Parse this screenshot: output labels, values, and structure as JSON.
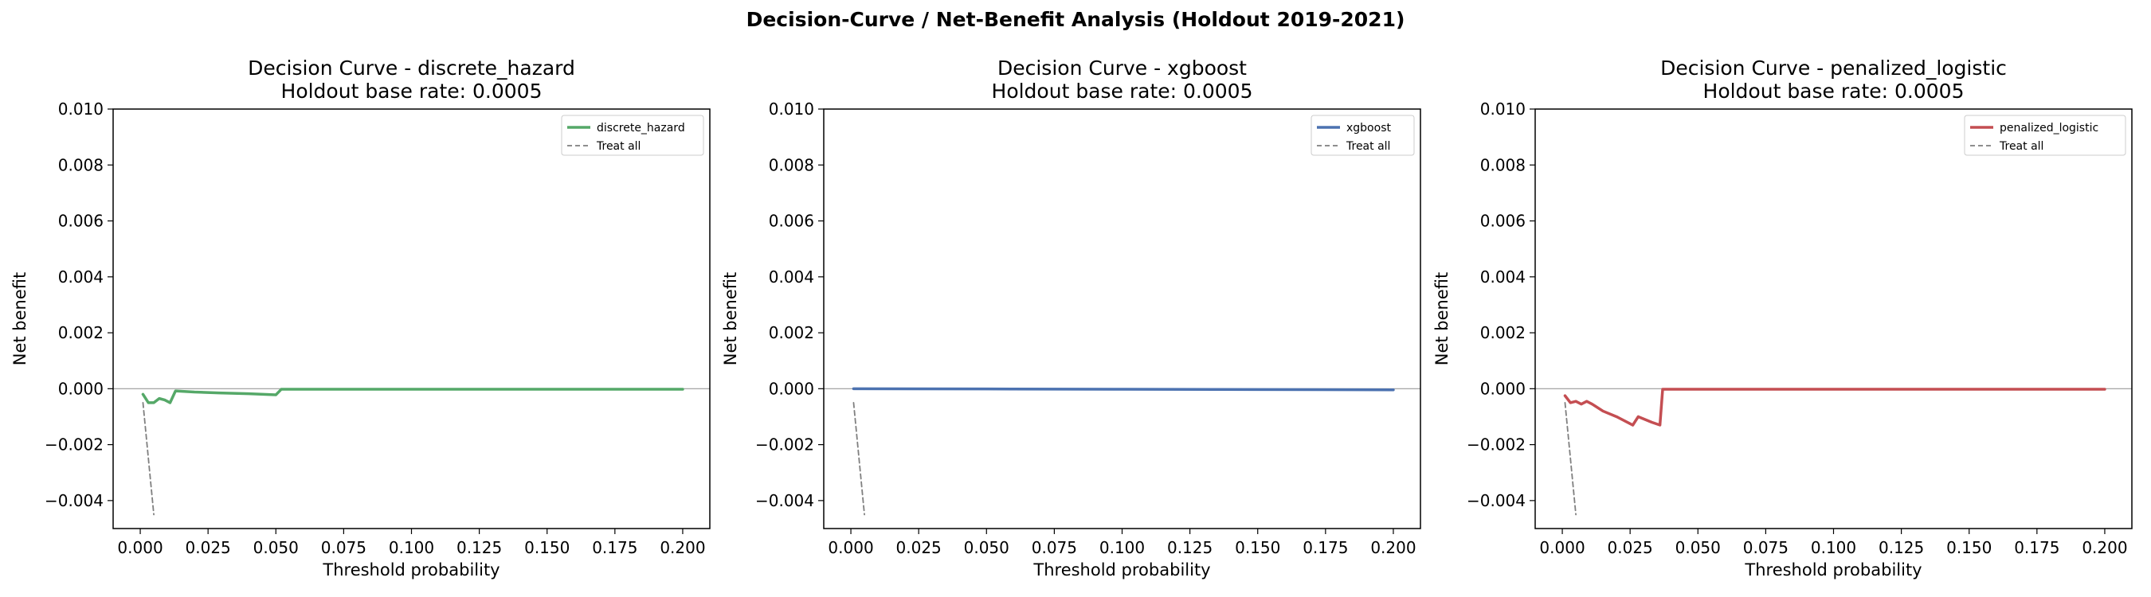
{
  "figure": {
    "suptitle": "Decision-Curve / Net-Benefit Analysis (Holdout 2019-2021)"
  },
  "colors": {
    "discrete_hazard": "#55a868",
    "xgboost": "#4c72b0",
    "penalized_logistic": "#c44e52",
    "treat_all": "#7f7f7f",
    "zero_line": "#999999"
  },
  "chart_data": [
    {
      "type": "line",
      "title": "Decision Curve - discrete_hazard",
      "subtitle": "Holdout base rate: 0.0005",
      "xlabel": "Threshold probability",
      "ylabel": "Net benefit",
      "xlim": [
        -0.01,
        0.21
      ],
      "ylim": [
        -0.005,
        0.01
      ],
      "xticks": [
        "0.000",
        "0.025",
        "0.050",
        "0.075",
        "0.100",
        "0.125",
        "0.150",
        "0.175",
        "0.200"
      ],
      "yticks": [
        "0.010",
        "0.008",
        "0.006",
        "0.004",
        "0.002",
        "0.000",
        "−0.002",
        "−0.004"
      ],
      "grid": false,
      "legend_position": "top-right",
      "series": [
        {
          "name": "discrete_hazard",
          "color": "#55a868",
          "dashed": false,
          "x": [
            0.001,
            0.003,
            0.005,
            0.007,
            0.009,
            0.011,
            0.013,
            0.02,
            0.029,
            0.04,
            0.05,
            0.052,
            0.06,
            0.1,
            0.15,
            0.2
          ],
          "y": [
            -0.0002,
            -0.0005,
            -0.0005,
            -0.00035,
            -0.0004,
            -0.0005,
            -8e-05,
            -0.00012,
            -0.00015,
            -0.00018,
            -0.00022,
            -2e-05,
            -2e-05,
            -2e-05,
            -2e-05,
            -2e-05
          ]
        },
        {
          "name": "Treat all",
          "color": "#7f7f7f",
          "dashed": true,
          "x": [
            0.001,
            0.005
          ],
          "y": [
            -0.0005,
            -0.0045
          ]
        }
      ]
    },
    {
      "type": "line",
      "title": "Decision Curve - xgboost",
      "subtitle": "Holdout base rate: 0.0005",
      "xlabel": "Threshold probability",
      "ylabel": "Net benefit",
      "xlim": [
        -0.01,
        0.21
      ],
      "ylim": [
        -0.005,
        0.01
      ],
      "xticks": [
        "0.000",
        "0.025",
        "0.050",
        "0.075",
        "0.100",
        "0.125",
        "0.150",
        "0.175",
        "0.200"
      ],
      "yticks": [
        "0.010",
        "0.008",
        "0.006",
        "0.004",
        "0.002",
        "0.000",
        "−0.002",
        "−0.004"
      ],
      "grid": false,
      "legend_position": "top-right",
      "series": [
        {
          "name": "xgboost",
          "color": "#4c72b0",
          "dashed": false,
          "x": [
            0.001,
            0.05,
            0.1,
            0.15,
            0.2
          ],
          "y": [
            0.0,
            -1e-05,
            -2e-05,
            -3e-05,
            -4e-05
          ]
        },
        {
          "name": "Treat all",
          "color": "#7f7f7f",
          "dashed": true,
          "x": [
            0.001,
            0.005
          ],
          "y": [
            -0.0005,
            -0.0045
          ]
        }
      ]
    },
    {
      "type": "line",
      "title": "Decision Curve - penalized_logistic",
      "subtitle": "Holdout base rate: 0.0005",
      "xlabel": "Threshold probability",
      "ylabel": "Net benefit",
      "xlim": [
        -0.01,
        0.21
      ],
      "ylim": [
        -0.005,
        0.01
      ],
      "xticks": [
        "0.000",
        "0.025",
        "0.050",
        "0.075",
        "0.100",
        "0.125",
        "0.150",
        "0.175",
        "0.200"
      ],
      "yticks": [
        "0.010",
        "0.008",
        "0.006",
        "0.004",
        "0.002",
        "0.000",
        "−0.002",
        "−0.004"
      ],
      "grid": false,
      "legend_position": "top-right",
      "series": [
        {
          "name": "penalized_logistic",
          "color": "#c44e52",
          "dashed": false,
          "x": [
            0.001,
            0.003,
            0.005,
            0.007,
            0.009,
            0.011,
            0.015,
            0.02,
            0.026,
            0.028,
            0.033,
            0.036,
            0.037,
            0.06,
            0.1,
            0.15,
            0.2
          ],
          "y": [
            -0.00025,
            -0.0005,
            -0.00045,
            -0.00055,
            -0.00045,
            -0.00055,
            -0.0008,
            -0.001,
            -0.0013,
            -0.001,
            -0.0012,
            -0.0013,
            -2e-05,
            -2e-05,
            -2e-05,
            -2e-05,
            -2e-05
          ]
        },
        {
          "name": "Treat all",
          "color": "#7f7f7f",
          "dashed": true,
          "x": [
            0.001,
            0.005
          ],
          "y": [
            -0.0005,
            -0.0045
          ]
        }
      ]
    }
  ]
}
